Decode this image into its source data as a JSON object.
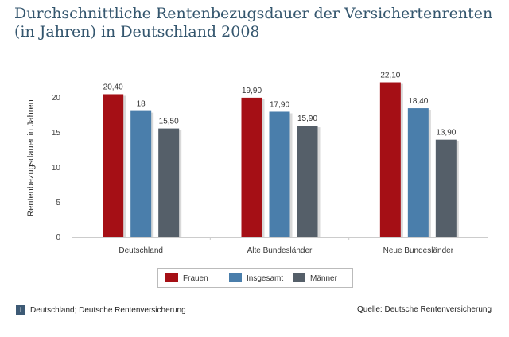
{
  "title": "Durchschnittliche Rentenbezugsdauer der Versichertenrenten (in Jahren) in Deutschland 2008",
  "footnote_left": "Deutschland; Deutsche Rentenversicherung",
  "footnote_icon": "i",
  "footnote_right": "Quelle: Deutsche Rentenversicherung",
  "colors": {
    "Frauen": "#a50f15",
    "Insgesamt": "#4a7eab",
    "Männer": "#555f69"
  },
  "chart_data": {
    "type": "bar",
    "title": "Durchschnittliche Rentenbezugsdauer der Versichertenrenten (in Jahren) in Deutschland 2008",
    "xlabel": "",
    "ylabel": "Rentenbezugsdauer in Jahren",
    "ylim": [
      0,
      22.5
    ],
    "yticks": [
      "0",
      "5",
      "10",
      "15",
      "20"
    ],
    "yticks_values": [
      0,
      5,
      10,
      15,
      20
    ],
    "categories": [
      "Deutschland",
      "Alte Bundesländer",
      "Neue Bundesländer"
    ],
    "series": [
      {
        "name": "Frauen",
        "values": [
          20.4,
          19.9,
          22.1
        ],
        "labels": [
          "20,40",
          "19,90",
          "22,10"
        ]
      },
      {
        "name": "Insgesamt",
        "values": [
          18,
          17.9,
          18.4
        ],
        "labels": [
          "18",
          "17,90",
          "18,40"
        ]
      },
      {
        "name": "Männer",
        "values": [
          15.5,
          15.9,
          13.9
        ],
        "labels": [
          "15,50",
          "15,90",
          "13,90"
        ]
      }
    ],
    "legend_position": "bottom-center",
    "grid": false
  }
}
